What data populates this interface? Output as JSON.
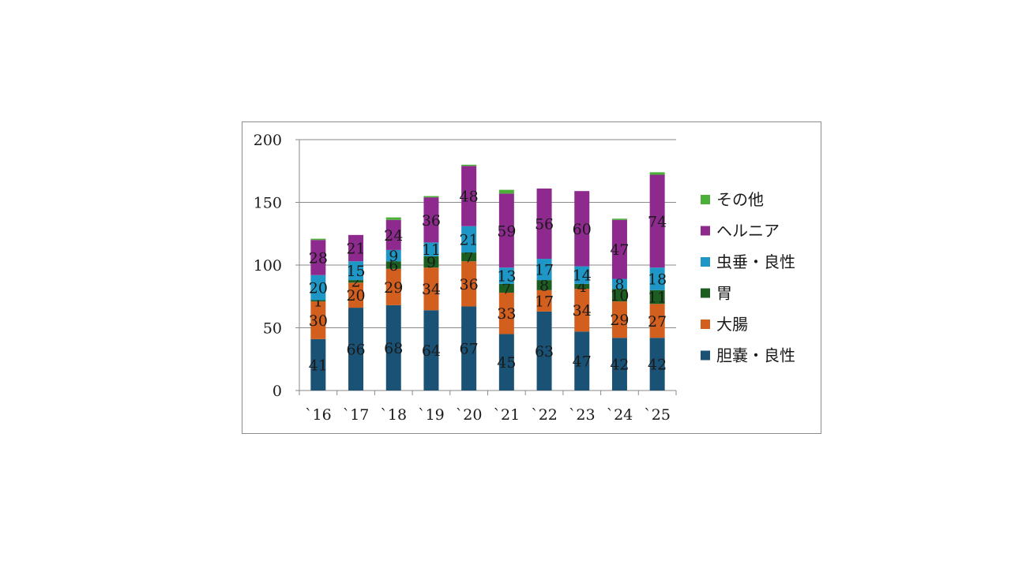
{
  "chart_data": {
    "type": "bar",
    "stacked": true,
    "categories": [
      "`16",
      "`17",
      "`18",
      "`19",
      "`20",
      "`21",
      "`22",
      "`23",
      "`24",
      "`25"
    ],
    "ylim": [
      0,
      200
    ],
    "yticks": [
      0,
      50,
      100,
      150,
      200
    ],
    "grid": true,
    "legend_position": "right",
    "series": [
      {
        "name": "胆嚢・良性",
        "color": "#1a5276",
        "values": [
          41,
          66,
          68,
          64,
          67,
          45,
          63,
          47,
          42,
          42
        ]
      },
      {
        "name": "大腸",
        "color": "#d35f1f",
        "values": [
          30,
          20,
          29,
          34,
          36,
          33,
          17,
          34,
          29,
          27
        ]
      },
      {
        "name": "胃",
        "color": "#1b5e20",
        "values": [
          1,
          2,
          6,
          9,
          7,
          7,
          8,
          4,
          10,
          11
        ]
      },
      {
        "name": "虫垂・良性",
        "color": "#1f97c6",
        "values": [
          20,
          15,
          9,
          11,
          21,
          13,
          17,
          14,
          8,
          18
        ]
      },
      {
        "name": "ヘルニア",
        "color": "#8e2a8e",
        "values": [
          28,
          21,
          24,
          36,
          48,
          59,
          56,
          60,
          47,
          74
        ]
      },
      {
        "name": "その他",
        "color": "#4caf3a",
        "values": [
          1,
          0,
          2,
          1,
          1,
          3,
          0,
          0,
          1,
          2
        ]
      }
    ]
  }
}
